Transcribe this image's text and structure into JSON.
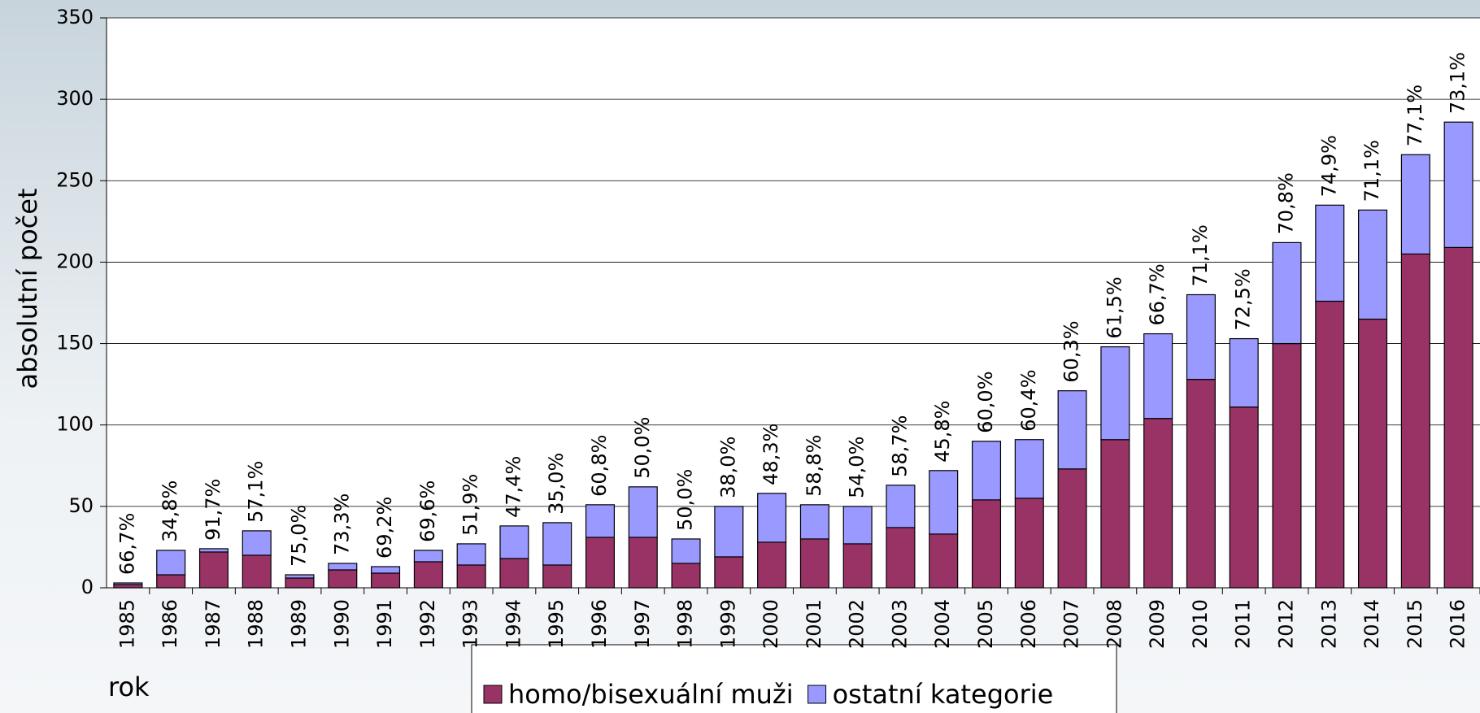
{
  "chart_data": {
    "type": "stacked_bar",
    "y_label": "absolutní počet",
    "x_label": "rok",
    "categories": [
      "1985",
      "1986",
      "1987",
      "1988",
      "1989",
      "1990",
      "1991",
      "1992",
      "1993",
      "1994",
      "1995",
      "1996",
      "1997",
      "1998",
      "1999",
      "2000",
      "2001",
      "2002",
      "2003",
      "2004",
      "2005",
      "2006",
      "2007",
      "2008",
      "2009",
      "2010",
      "2011",
      "2012",
      "2013",
      "2014",
      "2015",
      "2016"
    ],
    "series": [
      {
        "name": "homo/bisexuální muži",
        "color": "#993366",
        "values": [
          2,
          8,
          22,
          20,
          6,
          11,
          9,
          16,
          14,
          18,
          14,
          31,
          31,
          15,
          19,
          28,
          30,
          27,
          37,
          33,
          54,
          55,
          73,
          91,
          104,
          128,
          111,
          150,
          176,
          165,
          205,
          209
        ]
      },
      {
        "name": "ostatní kategorie",
        "color": "#9999ff",
        "values": [
          1,
          15,
          2,
          15,
          2,
          4,
          4,
          7,
          13,
          20,
          26,
          20,
          31,
          15,
          31,
          30,
          21,
          23,
          26,
          39,
          36,
          36,
          48,
          57,
          52,
          52,
          42,
          62,
          59,
          67,
          61,
          77
        ]
      }
    ],
    "annotations": [
      "66,7%",
      "34,8%",
      "91,7%",
      "57,1%",
      "75,0%",
      "73,3%",
      "69,2%",
      "69,6%",
      "51,9%",
      "47,4%",
      "35,0%",
      "60,8%",
      "50,0%",
      "50,0%",
      "38,0%",
      "48,3%",
      "58,8%",
      "54,0%",
      "58,7%",
      "45,8%",
      "60,0%",
      "60,4%",
      "60,3%",
      "61,5%",
      "66,7%",
      "71,1%",
      "72,5%",
      "70,8%",
      "74,9%",
      "71,1%",
      "77,1%",
      "73,1%"
    ],
    "ylim": [
      0,
      350
    ],
    "yticks": [
      0,
      50,
      100,
      150,
      200,
      250,
      300,
      350
    ],
    "grid": true,
    "legend": "bottom"
  }
}
